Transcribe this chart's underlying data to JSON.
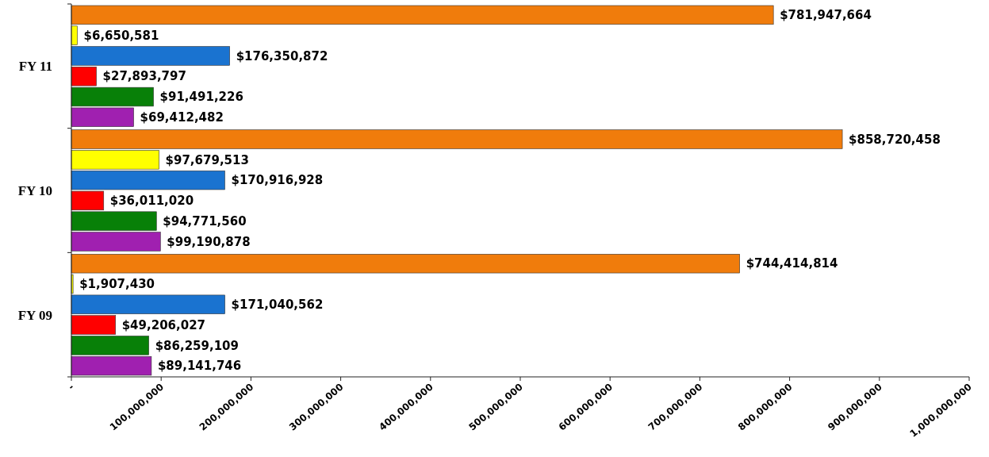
{
  "chart_data": {
    "type": "bar",
    "orientation": "horizontal",
    "categories": [
      "FY 11",
      "FY 10",
      "FY 09"
    ],
    "series": [
      {
        "color": "#f07c0c",
        "values": [
          781947664,
          858720458,
          744414814
        ],
        "value_labels": [
          "$781,947,664",
          "$858,720,458",
          "$744,414,814"
        ]
      },
      {
        "color": "#ffff00",
        "values": [
          6650581,
          97679513,
          1907430
        ],
        "value_labels": [
          "$6,650,581",
          "$97,679,513",
          "$1,907,430"
        ]
      },
      {
        "color": "#1a73d0",
        "values": [
          176350872,
          170916928,
          171040562
        ],
        "value_labels": [
          "$176,350,872",
          "$170,916,928",
          "$171,040,562"
        ]
      },
      {
        "color": "#ff0000",
        "values": [
          27893797,
          36011020,
          49206027
        ],
        "value_labels": [
          "$27,893,797",
          "$36,011,020",
          "$49,206,027"
        ]
      },
      {
        "color": "#088008",
        "values": [
          91491226,
          94771560,
          86259109
        ],
        "value_labels": [
          "$91,491,226",
          "$94,771,560",
          "$86,259,109"
        ]
      },
      {
        "color": "#a020b0",
        "values": [
          69412482,
          99190878,
          89141746
        ],
        "value_labels": [
          "$69,412,482",
          "$99,190,878",
          "$89,141,746"
        ]
      }
    ],
    "xlim": [
      0,
      1000000000
    ],
    "xticks": [
      {
        "value": 0,
        "label": "-"
      },
      {
        "value": 100000000,
        "label": "100,000,000"
      },
      {
        "value": 200000000,
        "label": "200,000,000"
      },
      {
        "value": 300000000,
        "label": "300,000,000"
      },
      {
        "value": 400000000,
        "label": "400,000,000"
      },
      {
        "value": 500000000,
        "label": "500,000,000"
      },
      {
        "value": 600000000,
        "label": "600,000,000"
      },
      {
        "value": 700000000,
        "label": "700,000,000"
      },
      {
        "value": 800000000,
        "label": "800,000,000"
      },
      {
        "value": 900000000,
        "label": "900,000,000"
      },
      {
        "value": 1000000000,
        "label": "1,000,000,000"
      }
    ]
  }
}
